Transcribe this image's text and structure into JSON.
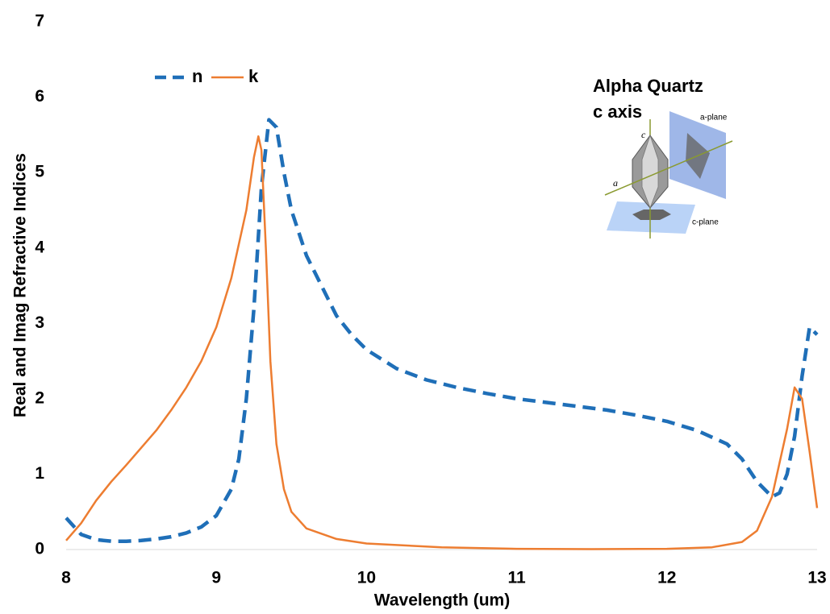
{
  "chart_data": {
    "type": "line",
    "xlabel": "Wavelength (um)",
    "ylabel": "Real and Imag Refractive Indices",
    "annotations": [
      "Alpha Quartz",
      "c axis"
    ],
    "inset_labels": {
      "a_plane": "a-plane",
      "c_plane": "c-plane",
      "c": "c",
      "a": "a"
    },
    "xlim": [
      8,
      13
    ],
    "xticks": [
      8,
      9,
      10,
      11,
      12,
      13
    ],
    "ylim": [
      0,
      7
    ],
    "yticks": [
      0,
      1,
      2,
      3,
      4,
      5,
      6,
      7
    ],
    "legend": "top-left",
    "series": [
      {
        "name": "n",
        "color": "#1f6fb8",
        "dash": "dashed",
        "x": [
          8.0,
          8.1,
          8.2,
          8.3,
          8.4,
          8.5,
          8.6,
          8.7,
          8.8,
          8.9,
          9.0,
          9.1,
          9.15,
          9.2,
          9.25,
          9.3,
          9.35,
          9.4,
          9.45,
          9.5,
          9.6,
          9.7,
          9.8,
          9.9,
          10.0,
          10.2,
          10.4,
          10.6,
          10.8,
          11.0,
          11.2,
          11.4,
          11.6,
          11.8,
          12.0,
          12.2,
          12.4,
          12.5,
          12.6,
          12.7,
          12.75,
          12.8,
          12.85,
          12.9,
          12.95,
          13.0
        ],
        "values": [
          0.42,
          0.2,
          0.13,
          0.11,
          0.11,
          0.12,
          0.14,
          0.17,
          0.22,
          0.3,
          0.45,
          0.8,
          1.2,
          2.0,
          3.2,
          4.8,
          5.7,
          5.6,
          5.0,
          4.5,
          3.9,
          3.5,
          3.1,
          2.85,
          2.65,
          2.4,
          2.25,
          2.15,
          2.07,
          2.0,
          1.95,
          1.9,
          1.85,
          1.78,
          1.7,
          1.58,
          1.4,
          1.2,
          0.9,
          0.7,
          0.75,
          1.0,
          1.5,
          2.3,
          2.95,
          2.85
        ]
      },
      {
        "name": "k",
        "color": "#ed7d31",
        "dash": "solid",
        "x": [
          8.0,
          8.1,
          8.2,
          8.3,
          8.4,
          8.5,
          8.6,
          8.7,
          8.8,
          8.9,
          9.0,
          9.1,
          9.2,
          9.25,
          9.28,
          9.3,
          9.33,
          9.36,
          9.4,
          9.45,
          9.5,
          9.6,
          9.8,
          10.0,
          10.5,
          11.0,
          11.5,
          12.0,
          12.3,
          12.5,
          12.6,
          12.7,
          12.8,
          12.85,
          12.9,
          12.95,
          13.0
        ],
        "values": [
          0.12,
          0.35,
          0.65,
          0.9,
          1.12,
          1.35,
          1.58,
          1.85,
          2.15,
          2.5,
          2.95,
          3.6,
          4.5,
          5.2,
          5.48,
          5.3,
          4.0,
          2.5,
          1.4,
          0.8,
          0.5,
          0.28,
          0.14,
          0.08,
          0.03,
          0.01,
          0.005,
          0.01,
          0.03,
          0.1,
          0.25,
          0.7,
          1.6,
          2.15,
          2.0,
          1.3,
          0.55
        ]
      }
    ]
  }
}
